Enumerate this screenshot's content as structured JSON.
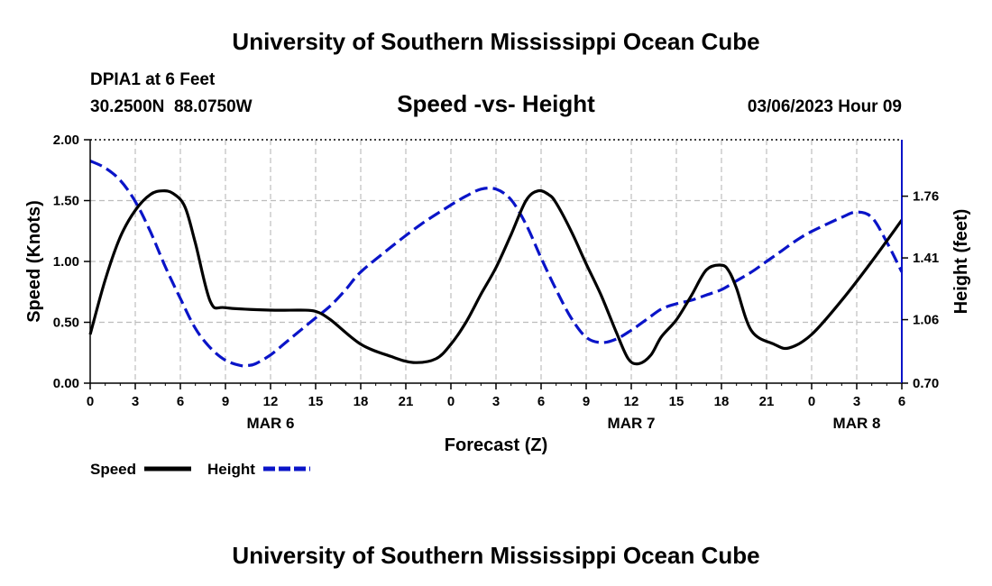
{
  "chart_data": {
    "type": "line",
    "title": "University of Southern Mississippi Ocean Cube",
    "footer_title": "University of Southern Mississippi Ocean Cube",
    "station": "DPIA1 at 6 Feet",
    "location": "30.2500N  88.0750W",
    "subtitle": "Speed -vs- Height",
    "timestamp": "03/06/2023 Hour 09",
    "xlabel": "Forecast (Z)",
    "ylabel": "Speed (Knots)",
    "y2label": "Height (feet)",
    "x_range": [
      0,
      54
    ],
    "ylim": [
      0,
      2
    ],
    "y2lim": [
      0.7,
      2.08
    ],
    "x_ticks": [
      0,
      3,
      6,
      9,
      12,
      15,
      18,
      21,
      24,
      27,
      30,
      33,
      36,
      39,
      42,
      45,
      48,
      51,
      54
    ],
    "x_tick_labels": [
      "0",
      "3",
      "6",
      "9",
      "12",
      "15",
      "18",
      "21",
      "0",
      "3",
      "6",
      "9",
      "12",
      "15",
      "18",
      "21",
      "0",
      "3",
      "6"
    ],
    "y_ticks": [
      0,
      0.5,
      1,
      1.5,
      2
    ],
    "y_tick_labels": [
      "0.00",
      "0.50",
      "1.00",
      "1.50",
      "2.00"
    ],
    "y2_ticks": [
      0.7,
      1.06,
      1.41,
      1.76
    ],
    "y2_tick_labels": [
      "0.70",
      "1.06",
      "1.41",
      "1.76"
    ],
    "date_labels": [
      {
        "x": 12,
        "label": "MAR 6"
      },
      {
        "x": 36,
        "label": "MAR 7"
      },
      {
        "x": 51,
        "label": "MAR 8"
      }
    ],
    "grid": true,
    "legend": [
      "Speed",
      "Height"
    ],
    "series": [
      {
        "name": "Speed",
        "axis": "left",
        "color": "#000000",
        "style": "solid",
        "x": [
          0,
          1,
          2,
          3,
          4,
          4.8,
          5.5,
          6.3,
          7,
          8,
          9,
          12,
          14,
          15,
          16,
          18,
          20,
          21.5,
          23,
          24,
          25,
          26,
          27,
          28,
          29,
          29.8,
          30.5,
          31,
          32,
          33,
          34,
          35,
          35.8,
          36.5,
          37.3,
          38,
          39,
          40,
          41,
          42,
          42.5,
          43,
          44,
          45.5,
          46.5,
          48,
          50,
          52,
          54
        ],
        "values": [
          0.4,
          0.85,
          1.2,
          1.42,
          1.55,
          1.58,
          1.56,
          1.45,
          1.15,
          0.67,
          0.62,
          0.6,
          0.6,
          0.59,
          0.52,
          0.32,
          0.22,
          0.17,
          0.2,
          0.32,
          0.5,
          0.73,
          0.95,
          1.22,
          1.5,
          1.58,
          1.55,
          1.48,
          1.25,
          0.98,
          0.72,
          0.42,
          0.2,
          0.16,
          0.23,
          0.38,
          0.52,
          0.72,
          0.93,
          0.97,
          0.92,
          0.78,
          0.43,
          0.32,
          0.29,
          0.4,
          0.68,
          1.0,
          1.34
        ]
      },
      {
        "name": "Height",
        "axis": "right",
        "color": "#0a14c8",
        "style": "dashed",
        "x": [
          0,
          1,
          2,
          3,
          4,
          5,
          6,
          7,
          8,
          9,
          10,
          10.5,
          11,
          12,
          13,
          14,
          15,
          16,
          17,
          18,
          20,
          22,
          24,
          25,
          26,
          27,
          28,
          29,
          30,
          31,
          32,
          33,
          34,
          35,
          36,
          37,
          38,
          39,
          40,
          41,
          42,
          43,
          44,
          45,
          46,
          47,
          48,
          50,
          51,
          52,
          53,
          54
        ],
        "values": [
          1.96,
          1.92,
          1.85,
          1.73,
          1.56,
          1.36,
          1.18,
          1.01,
          0.9,
          0.83,
          0.8,
          0.8,
          0.81,
          0.86,
          0.93,
          1.0,
          1.07,
          1.14,
          1.23,
          1.33,
          1.47,
          1.6,
          1.71,
          1.76,
          1.8,
          1.8,
          1.74,
          1.6,
          1.41,
          1.23,
          1.07,
          0.96,
          0.93,
          0.95,
          1.0,
          1.06,
          1.12,
          1.15,
          1.17,
          1.2,
          1.23,
          1.28,
          1.33,
          1.39,
          1.45,
          1.51,
          1.56,
          1.64,
          1.67,
          1.64,
          1.5,
          1.33
        ]
      }
    ]
  }
}
